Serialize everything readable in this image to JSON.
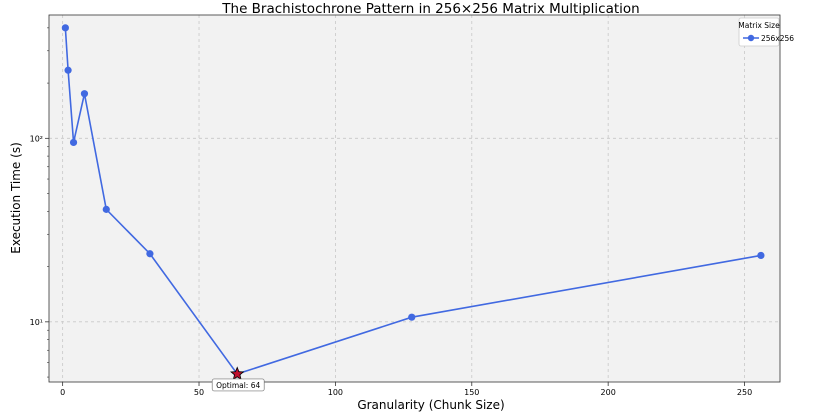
{
  "chart_data": {
    "type": "line",
    "title": "The Brachistochrone Pattern in 256×256 Matrix Multiplication",
    "xlabel": "Granularity (Chunk Size)",
    "ylabel": "Execution Time (s)",
    "xlim": [
      -5,
      263
    ],
    "ylim": [
      4.7,
      470
    ],
    "yscale": "log",
    "grid": true,
    "x_ticks": [
      0,
      50,
      100,
      150,
      200,
      250
    ],
    "x_tick_labels": [
      "0",
      "50",
      "100",
      "150",
      "200",
      "250"
    ],
    "y_ticks": [
      10,
      100
    ],
    "y_tick_labels": [
      "10¹",
      "10²"
    ],
    "legend": {
      "title": "Matrix Size",
      "placement": "top-right"
    },
    "series": [
      {
        "name": "256x256",
        "color": "#4169e1",
        "x": [
          1,
          2,
          4,
          8,
          16,
          32,
          64,
          128,
          256
        ],
        "y": [
          400,
          235,
          95,
          175,
          41,
          23.5,
          5.2,
          10.6,
          23
        ]
      }
    ],
    "annotations": [
      {
        "text": "Optimal: 64",
        "x": 64,
        "y": 5.2,
        "marker": "star",
        "color": "#c0102e"
      }
    ]
  }
}
